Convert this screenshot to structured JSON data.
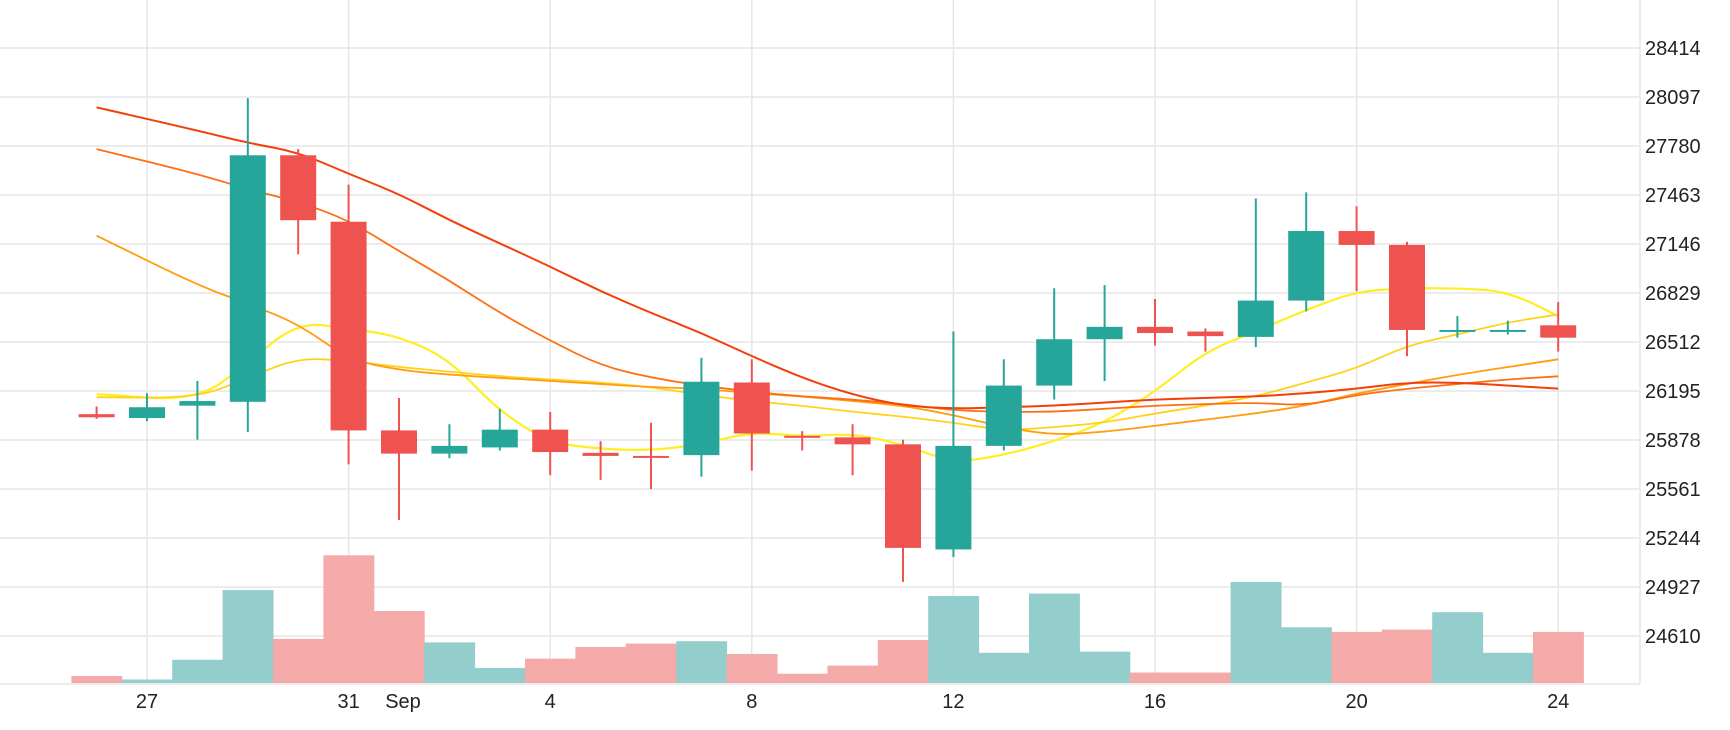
{
  "chart_data": {
    "type": "candlestick",
    "title": "",
    "xlabel": "",
    "ylabel": "",
    "y_axis_position": "right",
    "grid": true,
    "ylim": [
      24120,
      28640
    ],
    "y_ticks": [
      24610,
      24927,
      25244,
      25561,
      25878,
      26195,
      26512,
      26829,
      27146,
      27463,
      27780,
      28097,
      28414
    ],
    "x_ticks": [
      {
        "day": 0,
        "label": "27"
      },
      {
        "day": 4,
        "label": "31"
      },
      {
        "day": 5,
        "label": "Sep"
      },
      {
        "day": 8,
        "label": "4"
      },
      {
        "day": 12,
        "label": "8"
      },
      {
        "day": 16,
        "label": "12"
      },
      {
        "day": 20,
        "label": "16"
      },
      {
        "day": 24,
        "label": "20"
      },
      {
        "day": 28,
        "label": "24"
      }
    ],
    "candles": [
      {
        "day": -1,
        "open": 26045,
        "high": 26095,
        "low": 26015,
        "close": 26025
      },
      {
        "day": 0,
        "open": 26020,
        "high": 26180,
        "low": 26000,
        "close": 26090
      },
      {
        "day": 1,
        "open": 26100,
        "high": 26260,
        "low": 25880,
        "close": 26130
      },
      {
        "day": 2,
        "open": 26125,
        "high": 28090,
        "low": 25930,
        "close": 27720
      },
      {
        "day": 3,
        "open": 27720,
        "high": 27760,
        "low": 27080,
        "close": 27300
      },
      {
        "day": 4,
        "open": 27290,
        "high": 27530,
        "low": 25720,
        "close": 25940
      },
      {
        "day": 5,
        "open": 25940,
        "high": 26150,
        "low": 25360,
        "close": 25790
      },
      {
        "day": 6,
        "open": 25790,
        "high": 25980,
        "low": 25760,
        "close": 25840
      },
      {
        "day": 7,
        "open": 25830,
        "high": 26080,
        "low": 25810,
        "close": 25945
      },
      {
        "day": 8,
        "open": 25945,
        "high": 26060,
        "low": 25650,
        "close": 25800
      },
      {
        "day": 9,
        "open": 25795,
        "high": 25870,
        "low": 25620,
        "close": 25775
      },
      {
        "day": 10,
        "open": 25775,
        "high": 25990,
        "low": 25560,
        "close": 25770
      },
      {
        "day": 11,
        "open": 25780,
        "high": 26410,
        "low": 25640,
        "close": 26255
      },
      {
        "day": 12,
        "open": 26250,
        "high": 26400,
        "low": 25680,
        "close": 25920
      },
      {
        "day": 13,
        "open": 25905,
        "high": 25935,
        "low": 25810,
        "close": 25900
      },
      {
        "day": 14,
        "open": 25895,
        "high": 25980,
        "low": 25650,
        "close": 25850
      },
      {
        "day": 15,
        "open": 25850,
        "high": 25880,
        "low": 24960,
        "close": 25180
      },
      {
        "day": 16,
        "open": 25170,
        "high": 26580,
        "low": 25120,
        "close": 25840
      },
      {
        "day": 17,
        "open": 25840,
        "high": 26400,
        "low": 25810,
        "close": 26230
      },
      {
        "day": 18,
        "open": 26230,
        "high": 26860,
        "low": 26140,
        "close": 26530
      },
      {
        "day": 19,
        "open": 26530,
        "high": 26880,
        "low": 26260,
        "close": 26610
      },
      {
        "day": 20,
        "open": 26610,
        "high": 26790,
        "low": 26490,
        "close": 26570
      },
      {
        "day": 21,
        "open": 26580,
        "high": 26600,
        "low": 26450,
        "close": 26550
      },
      {
        "day": 22,
        "open": 26545,
        "high": 27440,
        "low": 26480,
        "close": 26780
      },
      {
        "day": 23,
        "open": 26780,
        "high": 27480,
        "low": 26710,
        "close": 27230
      },
      {
        "day": 24,
        "open": 27230,
        "high": 27390,
        "low": 26840,
        "close": 27140
      },
      {
        "day": 25,
        "open": 27140,
        "high": 27160,
        "low": 26420,
        "close": 26590
      },
      {
        "day": 26,
        "open": 26580,
        "high": 26680,
        "low": 26540,
        "close": 26590
      },
      {
        "day": 27,
        "open": 26590,
        "high": 26650,
        "low": 26560,
        "close": 26590
      },
      {
        "day": 28,
        "open": 26620,
        "high": 26770,
        "low": 26450,
        "close": 26540
      }
    ],
    "volume_bars": [
      {
        "day": -1,
        "volume": 6,
        "direction": "down"
      },
      {
        "day": 0,
        "volume": 3,
        "direction": "up"
      },
      {
        "day": 1,
        "volume": 20,
        "direction": "up"
      },
      {
        "day": 2,
        "volume": 80,
        "direction": "up"
      },
      {
        "day": 3,
        "volume": 38,
        "direction": "down"
      },
      {
        "day": 4,
        "volume": 110,
        "direction": "down"
      },
      {
        "day": 5,
        "volume": 62,
        "direction": "down"
      },
      {
        "day": 6,
        "volume": 35,
        "direction": "up"
      },
      {
        "day": 7,
        "volume": 13,
        "direction": "up"
      },
      {
        "day": 8,
        "volume": 21,
        "direction": "down"
      },
      {
        "day": 9,
        "volume": 31,
        "direction": "down"
      },
      {
        "day": 10,
        "volume": 34,
        "direction": "down"
      },
      {
        "day": 11,
        "volume": 36,
        "direction": "up"
      },
      {
        "day": 12,
        "volume": 25,
        "direction": "down"
      },
      {
        "day": 13,
        "volume": 8,
        "direction": "down"
      },
      {
        "day": 14,
        "volume": 15,
        "direction": "down"
      },
      {
        "day": 15,
        "volume": 37,
        "direction": "down"
      },
      {
        "day": 16,
        "volume": 75,
        "direction": "up"
      },
      {
        "day": 17,
        "volume": 26,
        "direction": "up"
      },
      {
        "day": 18,
        "volume": 77,
        "direction": "up"
      },
      {
        "day": 19,
        "volume": 27,
        "direction": "up"
      },
      {
        "day": 20,
        "volume": 9,
        "direction": "down"
      },
      {
        "day": 21,
        "volume": 9,
        "direction": "down"
      },
      {
        "day": 22,
        "volume": 87,
        "direction": "up"
      },
      {
        "day": 23,
        "volume": 48,
        "direction": "up"
      },
      {
        "day": 24,
        "volume": 44,
        "direction": "down"
      },
      {
        "day": 25,
        "volume": 46,
        "direction": "down"
      },
      {
        "day": 26,
        "volume": 61,
        "direction": "up"
      },
      {
        "day": 27,
        "volume": 26,
        "direction": "up"
      },
      {
        "day": 28,
        "volume": 44,
        "direction": "down"
      }
    ],
    "volume_max": 112,
    "ma_lines": [
      {
        "color": "#ffee22",
        "width": 2.2,
        "points": [
          [
            -1,
            26175
          ],
          [
            1,
            26130
          ],
          [
            2,
            26380
          ],
          [
            3,
            26640
          ],
          [
            4,
            26600
          ],
          [
            5,
            26550
          ],
          [
            6,
            26400
          ],
          [
            7,
            26060
          ],
          [
            8,
            25860
          ],
          [
            9,
            25820
          ],
          [
            10,
            25810
          ],
          [
            11,
            25850
          ],
          [
            12,
            25930
          ],
          [
            13,
            25900
          ],
          [
            14,
            25920
          ],
          [
            15,
            25850
          ],
          [
            16,
            25730
          ],
          [
            17,
            25780
          ],
          [
            18,
            25870
          ],
          [
            19,
            25990
          ],
          [
            20,
            26190
          ],
          [
            21,
            26450
          ],
          [
            22,
            26580
          ],
          [
            23,
            26720
          ],
          [
            24,
            26840
          ],
          [
            25,
            26860
          ],
          [
            26,
            26860
          ],
          [
            27,
            26840
          ],
          [
            28,
            26680
          ]
        ]
      },
      {
        "color": "#ffd21a",
        "width": 1.8,
        "points": [
          [
            -1,
            26155
          ],
          [
            1,
            26150
          ],
          [
            2,
            26280
          ],
          [
            3,
            26410
          ],
          [
            4,
            26390
          ],
          [
            5,
            26350
          ],
          [
            6,
            26320
          ],
          [
            7,
            26290
          ],
          [
            8,
            26270
          ],
          [
            9,
            26250
          ],
          [
            10,
            26220
          ],
          [
            11,
            26170
          ],
          [
            12,
            26130
          ],
          [
            13,
            26100
          ],
          [
            14,
            26060
          ],
          [
            15,
            26030
          ],
          [
            16,
            25990
          ],
          [
            17,
            25940
          ],
          [
            18,
            25960
          ],
          [
            19,
            25990
          ],
          [
            20,
            26050
          ],
          [
            21,
            26100
          ],
          [
            22,
            26160
          ],
          [
            23,
            26250
          ],
          [
            24,
            26340
          ],
          [
            25,
            26490
          ],
          [
            26,
            26560
          ],
          [
            27,
            26640
          ],
          [
            28,
            26690
          ]
        ]
      },
      {
        "color": "#ff9e10",
        "width": 1.8,
        "points": [
          [
            -1,
            27200
          ],
          [
            1,
            26880
          ],
          [
            2,
            26760
          ],
          [
            3,
            26630
          ],
          [
            4,
            26400
          ],
          [
            5,
            26330
          ],
          [
            6,
            26300
          ],
          [
            7,
            26280
          ],
          [
            8,
            26260
          ],
          [
            9,
            26240
          ],
          [
            10,
            26220
          ],
          [
            11,
            26210
          ],
          [
            12,
            26180
          ],
          [
            13,
            26160
          ],
          [
            14,
            26130
          ],
          [
            15,
            26100
          ],
          [
            16,
            26040
          ],
          [
            17,
            25960
          ],
          [
            18,
            25910
          ],
          [
            19,
            25930
          ],
          [
            20,
            25970
          ],
          [
            21,
            26010
          ],
          [
            22,
            26050
          ],
          [
            23,
            26100
          ],
          [
            24,
            26180
          ],
          [
            25,
            26240
          ],
          [
            26,
            26300
          ],
          [
            27,
            26350
          ],
          [
            28,
            26400
          ]
        ]
      },
      {
        "color": "#ff6e10",
        "width": 1.8,
        "points": [
          [
            -1,
            27760
          ],
          [
            1,
            27600
          ],
          [
            2,
            27500
          ],
          [
            3,
            27420
          ],
          [
            4,
            27300
          ],
          [
            5,
            27100
          ],
          [
            6,
            26910
          ],
          [
            7,
            26700
          ],
          [
            8,
            26520
          ],
          [
            9,
            26360
          ],
          [
            10,
            26280
          ],
          [
            11,
            26230
          ],
          [
            12,
            26190
          ],
          [
            13,
            26160
          ],
          [
            14,
            26140
          ],
          [
            15,
            26110
          ],
          [
            16,
            26070
          ],
          [
            17,
            26060
          ],
          [
            18,
            26060
          ],
          [
            19,
            26080
          ],
          [
            20,
            26100
          ],
          [
            21,
            26110
          ],
          [
            22,
            26120
          ],
          [
            23,
            26100
          ],
          [
            24,
            26170
          ],
          [
            25,
            26210
          ],
          [
            26,
            26240
          ],
          [
            27,
            26270
          ],
          [
            28,
            26290
          ]
        ]
      },
      {
        "color": "#f24008",
        "width": 2.0,
        "points": [
          [
            -1,
            28030
          ],
          [
            1,
            27880
          ],
          [
            2,
            27800
          ],
          [
            3,
            27740
          ],
          [
            4,
            27600
          ],
          [
            5,
            27470
          ],
          [
            6,
            27300
          ],
          [
            7,
            27150
          ],
          [
            8,
            27000
          ],
          [
            9,
            26840
          ],
          [
            10,
            26700
          ],
          [
            11,
            26570
          ],
          [
            12,
            26420
          ],
          [
            13,
            26280
          ],
          [
            14,
            26170
          ],
          [
            15,
            26100
          ],
          [
            16,
            26080
          ],
          [
            17,
            26090
          ],
          [
            18,
            26100
          ],
          [
            19,
            26120
          ],
          [
            20,
            26140
          ],
          [
            21,
            26150
          ],
          [
            22,
            26160
          ],
          [
            23,
            26180
          ],
          [
            24,
            26210
          ],
          [
            25,
            26250
          ],
          [
            26,
            26250
          ],
          [
            27,
            26230
          ],
          [
            28,
            26210
          ]
        ]
      }
    ],
    "colors": {
      "up": "#26a69a",
      "down": "#ef5350",
      "volume_up": "#93cdcc",
      "volume_down": "#f4aaa8",
      "grid": "#e6e6e6",
      "axis_text": "#222222"
    }
  }
}
